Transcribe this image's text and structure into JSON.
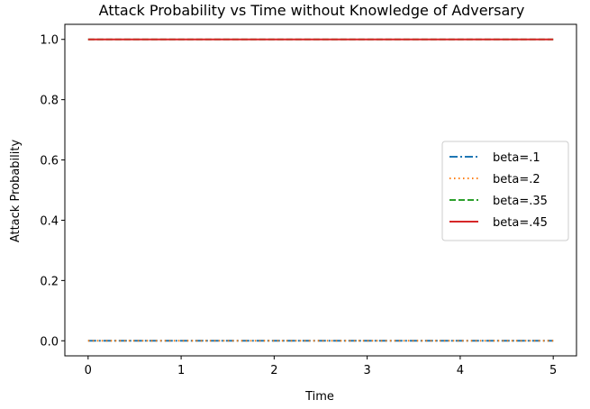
{
  "chart_data": {
    "type": "line",
    "title": "Attack Probability vs Time without Knowledge of Adversary",
    "xlabel": "Time",
    "ylabel": "Attack Probability",
    "xlim": [
      -0.25,
      5.25
    ],
    "ylim": [
      -0.05,
      1.05
    ],
    "xticks": [
      0,
      1,
      2,
      3,
      4,
      5
    ],
    "xtick_labels": [
      "0",
      "1",
      "2",
      "3",
      "4",
      "5"
    ],
    "yticks": [
      0.0,
      0.2,
      0.4,
      0.6,
      0.8,
      1.0
    ],
    "ytick_labels": [
      "0.0",
      "0.2",
      "0.4",
      "0.6",
      "0.8",
      "1.0"
    ],
    "grid": false,
    "legend_position": "center-right",
    "x": [
      0,
      1,
      2,
      3,
      4,
      5
    ],
    "series": [
      {
        "name": "beta=.1",
        "values": [
          0,
          0,
          0,
          0,
          0,
          0
        ],
        "color": "#1f77b4",
        "style": "dashdot"
      },
      {
        "name": "beta=.2",
        "values": [
          0,
          0,
          0,
          0,
          0,
          0
        ],
        "color": "#ff7f0e",
        "style": "dotted"
      },
      {
        "name": "beta=.35",
        "values": [
          1,
          1,
          1,
          1,
          1,
          1
        ],
        "color": "#2ca02c",
        "style": "dashed"
      },
      {
        "name": "beta=.45",
        "values": [
          1,
          1,
          1,
          1,
          1,
          1
        ],
        "color": "#d62728",
        "style": "solid"
      }
    ]
  }
}
